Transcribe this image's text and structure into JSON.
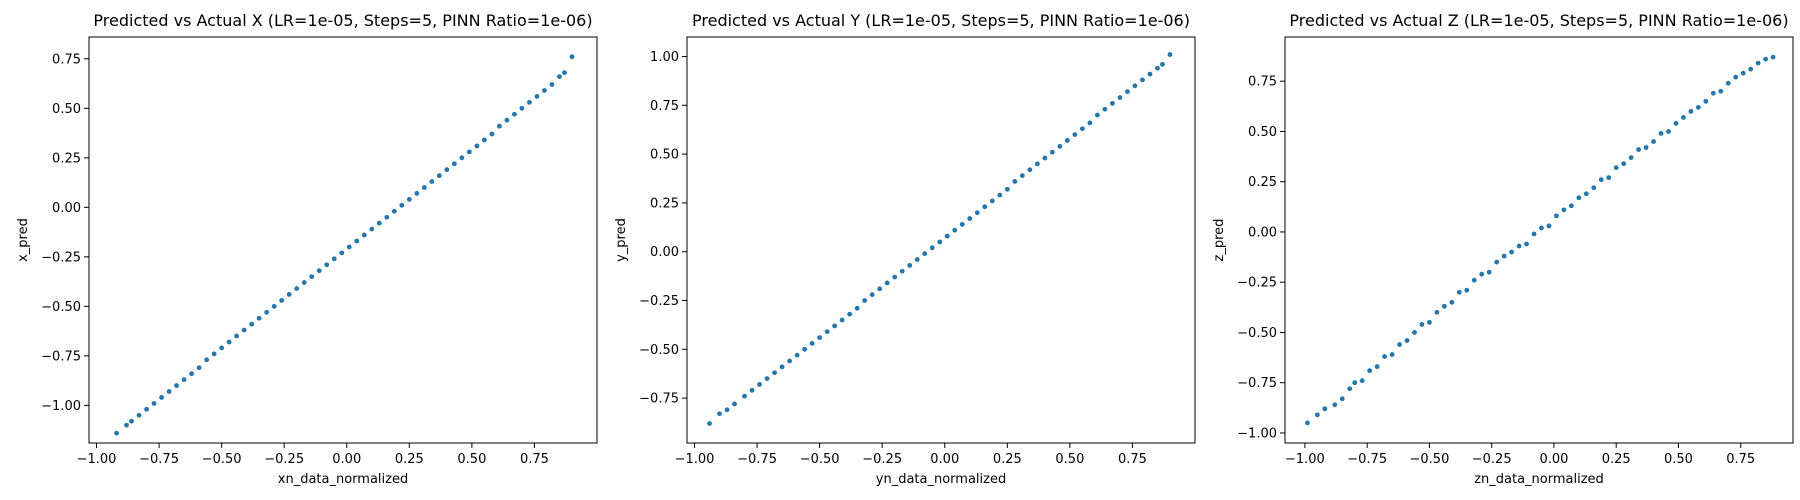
{
  "chart_data": [
    {
      "type": "scatter",
      "title": "Predicted vs Actual X (LR=1e-05, Steps=5, PINN Ratio=1e-06)",
      "xlabel": "xn_data_normalized",
      "ylabel": "x_pred",
      "xlim": [
        -1.03,
        1.0
      ],
      "ylim": [
        -1.19,
        0.86
      ],
      "xticks": [
        -1.0,
        -0.75,
        -0.5,
        -0.25,
        0.0,
        0.25,
        0.5,
        0.75
      ],
      "xtick_labels": [
        "−1.00",
        "−0.75",
        "−0.50",
        "−0.25",
        "0.00",
        "0.25",
        "0.50",
        "0.75"
      ],
      "yticks": [
        -1.0,
        -0.75,
        -0.5,
        -0.25,
        0.0,
        0.25,
        0.5,
        0.75
      ],
      "ytick_labels": [
        "−1.00",
        "−0.75",
        "−0.50",
        "−0.25",
        "0.00",
        "0.25",
        "0.50",
        "0.75"
      ],
      "color": "#1f77b4",
      "series": [
        {
          "x": [
            -0.92,
            -0.88,
            -0.86,
            -0.83,
            -0.8,
            -0.77,
            -0.74,
            -0.71,
            -0.68,
            -0.65,
            -0.62,
            -0.59,
            -0.56,
            -0.53,
            -0.5,
            -0.47,
            -0.44,
            -0.41,
            -0.38,
            -0.35,
            -0.32,
            -0.29,
            -0.26,
            -0.23,
            -0.2,
            -0.17,
            -0.14,
            -0.11,
            -0.08,
            -0.05,
            -0.02,
            0.01,
            0.04,
            0.07,
            0.1,
            0.13,
            0.16,
            0.19,
            0.22,
            0.25,
            0.28,
            0.31,
            0.34,
            0.37,
            0.4,
            0.43,
            0.46,
            0.49,
            0.52,
            0.55,
            0.58,
            0.61,
            0.64,
            0.67,
            0.7,
            0.73,
            0.76,
            0.79,
            0.82,
            0.85,
            0.87,
            0.9
          ],
          "y": [
            -1.14,
            -1.1,
            -1.08,
            -1.05,
            -1.02,
            -0.99,
            -0.96,
            -0.93,
            -0.9,
            -0.87,
            -0.84,
            -0.81,
            -0.77,
            -0.74,
            -0.71,
            -0.68,
            -0.65,
            -0.62,
            -0.59,
            -0.56,
            -0.53,
            -0.5,
            -0.47,
            -0.44,
            -0.41,
            -0.38,
            -0.35,
            -0.32,
            -0.29,
            -0.26,
            -0.23,
            -0.2,
            -0.17,
            -0.14,
            -0.11,
            -0.08,
            -0.05,
            -0.02,
            0.01,
            0.04,
            0.07,
            0.1,
            0.13,
            0.16,
            0.19,
            0.22,
            0.25,
            0.28,
            0.31,
            0.34,
            0.37,
            0.41,
            0.44,
            0.47,
            0.5,
            0.53,
            0.56,
            0.59,
            0.62,
            0.66,
            0.68,
            0.76
          ]
        }
      ]
    },
    {
      "type": "scatter",
      "title": "Predicted vs Actual Y (LR=1e-05, Steps=5, PINN Ratio=1e-06)",
      "xlabel": "yn_data_normalized",
      "ylabel": "y_pred",
      "xlim": [
        -1.03,
        1.0
      ],
      "ylim": [
        -0.98,
        1.1
      ],
      "xticks": [
        -1.0,
        -0.75,
        -0.5,
        -0.25,
        0.0,
        0.25,
        0.5,
        0.75
      ],
      "xtick_labels": [
        "−1.00",
        "−0.75",
        "−0.50",
        "−0.25",
        "0.00",
        "0.25",
        "0.50",
        "0.75"
      ],
      "yticks": [
        -0.75,
        -0.5,
        -0.25,
        0.0,
        0.25,
        0.5,
        0.75,
        1.0
      ],
      "ytick_labels": [
        "−0.75",
        "−0.50",
        "−0.25",
        "0.00",
        "0.25",
        "0.50",
        "0.75",
        "1.00"
      ],
      "color": "#1f77b4",
      "series": [
        {
          "x": [
            -0.94,
            -0.9,
            -0.87,
            -0.84,
            -0.8,
            -0.77,
            -0.74,
            -0.71,
            -0.68,
            -0.65,
            -0.62,
            -0.59,
            -0.56,
            -0.53,
            -0.5,
            -0.47,
            -0.44,
            -0.41,
            -0.38,
            -0.35,
            -0.32,
            -0.29,
            -0.26,
            -0.23,
            -0.2,
            -0.17,
            -0.14,
            -0.11,
            -0.08,
            -0.05,
            -0.02,
            0.01,
            0.04,
            0.07,
            0.1,
            0.13,
            0.16,
            0.19,
            0.22,
            0.25,
            0.28,
            0.31,
            0.34,
            0.37,
            0.4,
            0.43,
            0.46,
            0.49,
            0.52,
            0.55,
            0.58,
            0.61,
            0.64,
            0.67,
            0.7,
            0.73,
            0.76,
            0.79,
            0.82,
            0.85,
            0.87,
            0.9
          ],
          "y": [
            -0.88,
            -0.83,
            -0.81,
            -0.78,
            -0.74,
            -0.71,
            -0.68,
            -0.65,
            -0.62,
            -0.59,
            -0.56,
            -0.53,
            -0.5,
            -0.47,
            -0.44,
            -0.41,
            -0.38,
            -0.35,
            -0.32,
            -0.29,
            -0.25,
            -0.22,
            -0.19,
            -0.16,
            -0.13,
            -0.1,
            -0.07,
            -0.04,
            -0.01,
            0.02,
            0.05,
            0.08,
            0.11,
            0.14,
            0.17,
            0.2,
            0.23,
            0.26,
            0.29,
            0.32,
            0.36,
            0.39,
            0.42,
            0.45,
            0.48,
            0.51,
            0.54,
            0.57,
            0.6,
            0.63,
            0.66,
            0.7,
            0.73,
            0.76,
            0.79,
            0.82,
            0.85,
            0.88,
            0.91,
            0.94,
            0.96,
            1.01
          ]
        }
      ]
    },
    {
      "type": "scatter",
      "title": "Predicted vs Actual Z (LR=1e-05, Steps=5, PINN Ratio=1e-06)",
      "xlabel": "zn_data_normalized",
      "ylabel": "z_pred",
      "xlim": [
        -1.08,
        0.96
      ],
      "ylim": [
        -1.05,
        0.97
      ],
      "xticks": [
        -1.0,
        -0.75,
        -0.5,
        -0.25,
        0.0,
        0.25,
        0.5,
        0.75
      ],
      "xtick_labels": [
        "−1.00",
        "−0.75",
        "−0.50",
        "−0.25",
        "0.00",
        "0.25",
        "0.50",
        "0.75"
      ],
      "yticks": [
        -1.0,
        -0.75,
        -0.5,
        -0.25,
        0.0,
        0.25,
        0.5,
        0.75
      ],
      "ytick_labels": [
        "−1.00",
        "−0.75",
        "−0.50",
        "−0.25",
        "0.00",
        "0.25",
        "0.50",
        "0.75"
      ],
      "color": "#1f77b4",
      "series": [
        {
          "x": [
            -0.99,
            -0.95,
            -0.92,
            -0.88,
            -0.85,
            -0.82,
            -0.8,
            -0.77,
            -0.74,
            -0.71,
            -0.68,
            -0.65,
            -0.62,
            -0.59,
            -0.56,
            -0.53,
            -0.5,
            -0.47,
            -0.44,
            -0.41,
            -0.38,
            -0.35,
            -0.32,
            -0.29,
            -0.26,
            -0.23,
            -0.2,
            -0.17,
            -0.14,
            -0.11,
            -0.08,
            -0.05,
            -0.02,
            0.01,
            0.04,
            0.07,
            0.1,
            0.13,
            0.16,
            0.19,
            0.22,
            0.25,
            0.28,
            0.31,
            0.34,
            0.37,
            0.4,
            0.43,
            0.46,
            0.49,
            0.52,
            0.55,
            0.58,
            0.61,
            0.64,
            0.67,
            0.7,
            0.73,
            0.76,
            0.79,
            0.82,
            0.85,
            0.88
          ],
          "y": [
            -0.95,
            -0.91,
            -0.88,
            -0.86,
            -0.83,
            -0.78,
            -0.75,
            -0.74,
            -0.69,
            -0.67,
            -0.62,
            -0.61,
            -0.56,
            -0.54,
            -0.5,
            -0.46,
            -0.45,
            -0.4,
            -0.37,
            -0.35,
            -0.3,
            -0.29,
            -0.24,
            -0.21,
            -0.2,
            -0.15,
            -0.12,
            -0.1,
            -0.07,
            -0.06,
            -0.01,
            0.02,
            0.03,
            0.08,
            0.11,
            0.13,
            0.17,
            0.19,
            0.22,
            0.26,
            0.27,
            0.32,
            0.34,
            0.37,
            0.41,
            0.42,
            0.45,
            0.49,
            0.5,
            0.54,
            0.57,
            0.6,
            0.62,
            0.65,
            0.69,
            0.7,
            0.74,
            0.77,
            0.79,
            0.81,
            0.84,
            0.86,
            0.87
          ]
        }
      ]
    }
  ]
}
